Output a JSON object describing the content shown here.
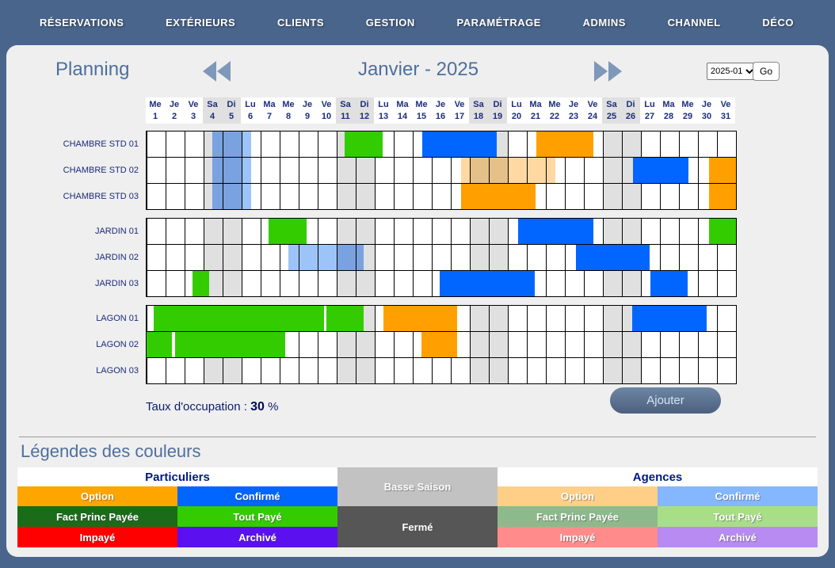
{
  "nav": {
    "items": [
      {
        "id": "reservations",
        "label": "RÉSERVATIONS"
      },
      {
        "id": "exterieurs",
        "label": "EXTÉRIEURS"
      },
      {
        "id": "clients",
        "label": "CLIENTS"
      },
      {
        "id": "gestion",
        "label": "GESTION"
      },
      {
        "id": "parametrage",
        "label": "PARAMÉTRAGE"
      },
      {
        "id": "admins",
        "label": "ADMINS"
      },
      {
        "id": "channel",
        "label": "CHANNEL"
      },
      {
        "id": "deco",
        "label": "DÉCO"
      }
    ]
  },
  "header": {
    "title": "Planning",
    "month_label": "Janvier - 2025",
    "select_value": "2025-01",
    "go_label": "Go"
  },
  "calendar": {
    "weekend_color": "#e0e0e0",
    "weekend_days": [
      4,
      5,
      11,
      12,
      18,
      19,
      25,
      26
    ],
    "days": [
      {
        "w": "Me",
        "n": "1"
      },
      {
        "w": "Je",
        "n": "2"
      },
      {
        "w": "Ve",
        "n": "3"
      },
      {
        "w": "Sa",
        "n": "4"
      },
      {
        "w": "Di",
        "n": "5"
      },
      {
        "w": "Lu",
        "n": "6"
      },
      {
        "w": "Ma",
        "n": "7"
      },
      {
        "w": "Me",
        "n": "8"
      },
      {
        "w": "Je",
        "n": "9"
      },
      {
        "w": "Ve",
        "n": "10"
      },
      {
        "w": "Sa",
        "n": "11"
      },
      {
        "w": "Di",
        "n": "12"
      },
      {
        "w": "Lu",
        "n": "13"
      },
      {
        "w": "Ma",
        "n": "14"
      },
      {
        "w": "Me",
        "n": "15"
      },
      {
        "w": "Je",
        "n": "16"
      },
      {
        "w": "Ve",
        "n": "17"
      },
      {
        "w": "Sa",
        "n": "18"
      },
      {
        "w": "Di",
        "n": "19"
      },
      {
        "w": "Lu",
        "n": "20"
      },
      {
        "w": "Ma",
        "n": "21"
      },
      {
        "w": "Me",
        "n": "22"
      },
      {
        "w": "Je",
        "n": "23"
      },
      {
        "w": "Ve",
        "n": "24"
      },
      {
        "w": "Sa",
        "n": "25"
      },
      {
        "w": "Di",
        "n": "26"
      },
      {
        "w": "Lu",
        "n": "27"
      },
      {
        "w": "Ma",
        "n": "28"
      },
      {
        "w": "Me",
        "n": "29"
      },
      {
        "w": "Je",
        "n": "30"
      },
      {
        "w": "Ve",
        "n": "31"
      }
    ],
    "sections": [
      {
        "rooms": [
          {
            "id": "chambre-std-01",
            "label": "CHAMBRE STD 01",
            "bars": [
              {
                "s": 3.45,
                "e": 5,
                "color": "#7aa2de",
                "light": true
              },
              {
                "s": 5,
                "e": 5.5,
                "color": "#9dc4f8",
                "light": true
              },
              {
                "s": 10.4,
                "e": 12.4,
                "color": "#33cc00"
              },
              {
                "s": 14.5,
                "e": 18.4,
                "color": "#0066ff"
              },
              {
                "s": 20.5,
                "e": 23.5,
                "color": "#ffa000"
              }
            ]
          },
          {
            "id": "chambre-std-02",
            "label": "CHAMBRE STD 02",
            "bars": [
              {
                "s": 3.45,
                "e": 5,
                "color": "#7aa2de",
                "light": true
              },
              {
                "s": 5,
                "e": 5.5,
                "color": "#9dc4f8",
                "light": true
              },
              {
                "s": 16.55,
                "e": 17,
                "color": "#ffd9a1",
                "light": true
              },
              {
                "s": 17,
                "e": 19,
                "color": "#e6c089",
                "light": true
              },
              {
                "s": 19,
                "e": 21.5,
                "color": "#ffd9a1",
                "light": true
              },
              {
                "s": 25.6,
                "e": 28.5,
                "color": "#0066ff"
              },
              {
                "s": 29.6,
                "e": 31,
                "color": "#ffa000"
              }
            ]
          },
          {
            "id": "chambre-std-03",
            "label": "CHAMBRE STD 03",
            "bars": [
              {
                "s": 3.45,
                "e": 5,
                "color": "#7aa2de",
                "light": true
              },
              {
                "s": 5,
                "e": 5.5,
                "color": "#9dc4f8",
                "light": true
              },
              {
                "s": 16.55,
                "e": 20.45,
                "color": "#ffa000"
              },
              {
                "s": 29.6,
                "e": 31,
                "color": "#ffa000"
              }
            ]
          }
        ]
      },
      {
        "rooms": [
          {
            "id": "jardin-01",
            "label": "JARDIN 01",
            "bars": [
              {
                "s": 6.4,
                "e": 8.4,
                "color": "#33cc00"
              },
              {
                "s": 19.55,
                "e": 23.5,
                "color": "#0066ff"
              },
              {
                "s": 29.6,
                "e": 31,
                "color": "#33cc00"
              }
            ]
          },
          {
            "id": "jardin-02",
            "label": "JARDIN 02",
            "bars": [
              {
                "s": 7.45,
                "e": 10,
                "color": "#9dc4f8",
                "light": true
              },
              {
                "s": 10,
                "e": 11.4,
                "color": "#7aa2de",
                "light": true
              },
              {
                "s": 22.6,
                "e": 26.45,
                "color": "#0066ff"
              }
            ]
          },
          {
            "id": "jardin-03",
            "label": "JARDIN 03",
            "bars": [
              {
                "s": 2.42,
                "e": 3.3,
                "color": "#33cc00"
              },
              {
                "s": 15.4,
                "e": 20.4,
                "color": "#0066ff"
              },
              {
                "s": 26.5,
                "e": 28.45,
                "color": "#0066ff"
              }
            ]
          }
        ]
      },
      {
        "rooms": [
          {
            "id": "lagon-01",
            "label": "LAGON 01",
            "bars": [
              {
                "s": 0.38,
                "e": 9.35,
                "color": "#33cc00"
              },
              {
                "s": 9.45,
                "e": 11.4,
                "color": "#33cc00"
              },
              {
                "s": 12.45,
                "e": 16.35,
                "color": "#ffa000"
              },
              {
                "s": 25.55,
                "e": 29.45,
                "color": "#0066ff"
              }
            ]
          },
          {
            "id": "lagon-02",
            "label": "LAGON 02",
            "bars": [
              {
                "s": 0,
                "e": 1.33,
                "color": "#33cc00"
              },
              {
                "s": 1.5,
                "e": 7.3,
                "color": "#33cc00"
              },
              {
                "s": 14.45,
                "e": 16.35,
                "color": "#ffa000"
              }
            ]
          },
          {
            "id": "lagon-03",
            "label": "LAGON 03",
            "bars": []
          }
        ]
      }
    ]
  },
  "occupancy": {
    "label": "Taux d'occupation :",
    "value": "30",
    "suffix": "%"
  },
  "actions": {
    "add_label": "Ajouter"
  },
  "legend": {
    "title": "Légendes des couleurs",
    "groups": {
      "particuliers": "Particuliers",
      "agences": "Agences"
    },
    "center": [
      {
        "id": "basse-saison",
        "label": "Basse Saison",
        "color": "#c2c2c2"
      },
      {
        "id": "ferme",
        "label": "Fermé",
        "color": "#565656"
      }
    ],
    "particuliers": [
      {
        "id": "option",
        "label": "Option",
        "color": "#ffa500"
      },
      {
        "id": "confirme",
        "label": "Confirmé",
        "color": "#0066ff"
      },
      {
        "id": "fact-princ-payee",
        "label": "Fact Princ Payée",
        "color": "#1a6b1a"
      },
      {
        "id": "tout-paye",
        "label": "Tout Payé",
        "color": "#33cc00"
      },
      {
        "id": "impaye",
        "label": "Impayé",
        "color": "#fe0000"
      },
      {
        "id": "archive",
        "label": "Archivé",
        "color": "#5b10ef"
      }
    ],
    "agences": [
      {
        "id": "option",
        "label": "Option",
        "color": "#ffcf87"
      },
      {
        "id": "confirme",
        "label": "Confirmé",
        "color": "#84b7ff"
      },
      {
        "id": "fact-princ-payee",
        "label": "Fact Princ Payée",
        "color": "#8cba8c"
      },
      {
        "id": "tout-paye",
        "label": "Tout Payé",
        "color": "#a8df86"
      },
      {
        "id": "impaye",
        "label": "Impayé",
        "color": "#ff8b8b"
      },
      {
        "id": "archive",
        "label": "Archivé",
        "color": "#b78bf2"
      }
    ]
  }
}
